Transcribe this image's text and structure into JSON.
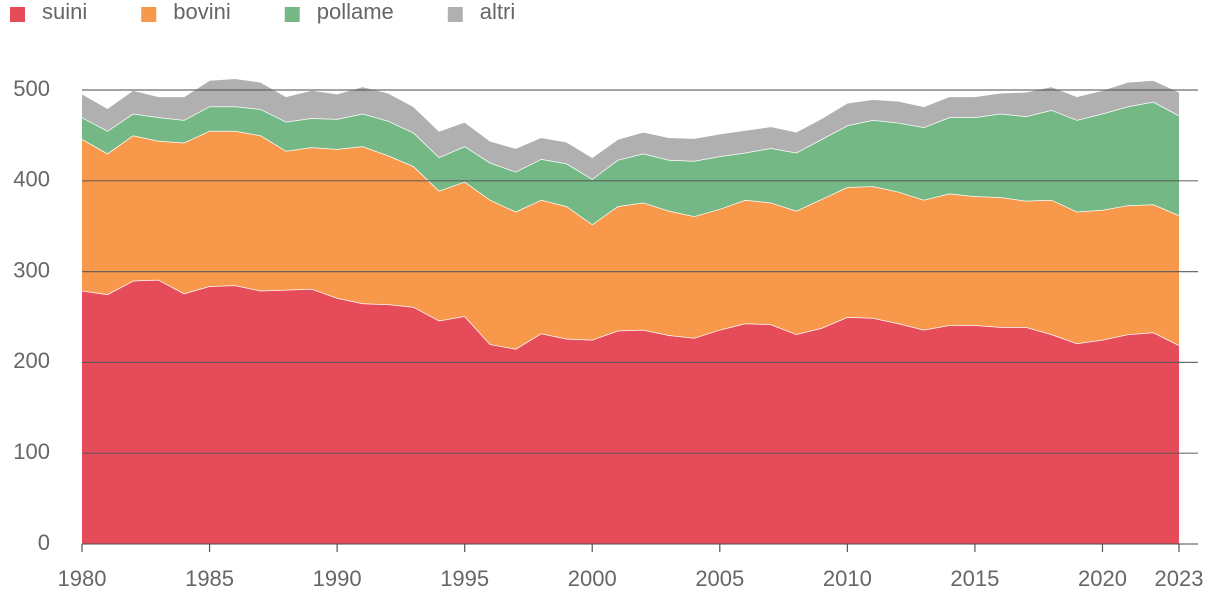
{
  "chart_data": {
    "type": "stacked-area",
    "x": [
      1980,
      1981,
      1982,
      1983,
      1984,
      1985,
      1986,
      1987,
      1988,
      1989,
      1990,
      1991,
      1992,
      1993,
      1994,
      1995,
      1996,
      1997,
      1998,
      1999,
      2000,
      2001,
      2002,
      2003,
      2004,
      2005,
      2006,
      2007,
      2008,
      2009,
      2010,
      2011,
      2012,
      2013,
      2014,
      2015,
      2016,
      2017,
      2018,
      2019,
      2020,
      2021,
      2022,
      2023
    ],
    "series": [
      {
        "name": "suini",
        "color": "#e64b5a",
        "values": [
          279,
          275,
          290,
          291,
          276,
          284,
          285,
          279,
          280,
          281,
          271,
          265,
          264,
          261,
          246,
          251,
          220,
          215,
          232,
          226,
          225,
          235,
          236,
          230,
          227,
          236,
          243,
          242,
          231,
          238,
          250,
          249,
          243,
          236,
          241,
          241,
          239,
          239,
          231,
          221,
          225,
          231,
          233,
          219
        ]
      },
      {
        "name": "bovini",
        "color": "#f7984a",
        "values": [
          167,
          155,
          160,
          153,
          166,
          171,
          170,
          171,
          153,
          156,
          164,
          173,
          164,
          155,
          143,
          148,
          159,
          151,
          147,
          146,
          127,
          137,
          140,
          137,
          134,
          133,
          136,
          134,
          136,
          142,
          143,
          145,
          145,
          143,
          145,
          142,
          143,
          139,
          148,
          145,
          143,
          142,
          141,
          143
        ]
      },
      {
        "name": "pollame",
        "color": "#74b985",
        "values": [
          24,
          25,
          24,
          26,
          25,
          27,
          27,
          29,
          32,
          32,
          33,
          36,
          38,
          37,
          37,
          39,
          41,
          44,
          45,
          47,
          50,
          51,
          54,
          56,
          61,
          58,
          52,
          60,
          64,
          66,
          68,
          73,
          76,
          80,
          84,
          87,
          92,
          93,
          99,
          101,
          106,
          109,
          113,
          110
        ]
      },
      {
        "name": "altri",
        "color": "#b0b0b0",
        "values": [
          26,
          25,
          26,
          23,
          26,
          29,
          31,
          30,
          28,
          31,
          28,
          30,
          31,
          29,
          29,
          27,
          24,
          26,
          24,
          24,
          24,
          23,
          24,
          25,
          25,
          25,
          25,
          24,
          23,
          23,
          25,
          23,
          24,
          23,
          23,
          23,
          23,
          27,
          26,
          26,
          26,
          27,
          24,
          26
        ]
      }
    ],
    "xlim": [
      1980,
      2023
    ],
    "xticks": [
      1980,
      1985,
      1990,
      1995,
      2000,
      2005,
      2010,
      2015,
      2020,
      2023
    ],
    "ylim": [
      0,
      500
    ],
    "yticks": [
      0,
      100,
      200,
      300,
      400,
      500
    ],
    "grid": true,
    "legend": "top-left"
  }
}
